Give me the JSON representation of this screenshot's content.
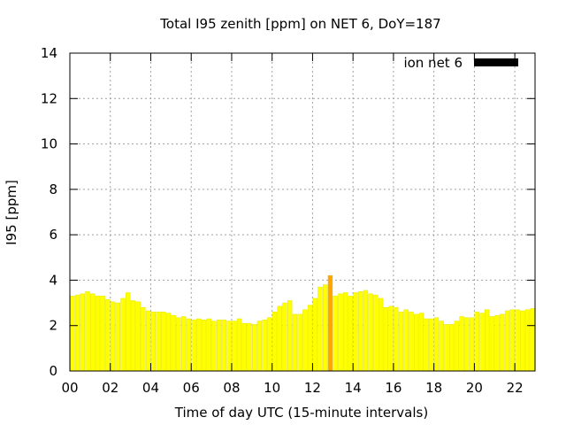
{
  "chart_data": {
    "type": "bar",
    "title": "Total I95 zenith [ppm] on NET 6, DoY=187",
    "xlabel": "Time of day UTC (15-minute intervals)",
    "ylabel": "I95 [ppm]",
    "xlim": [
      0,
      23
    ],
    "ylim": [
      0,
      14
    ],
    "x_tick_labels": [
      "00",
      "02",
      "04",
      "06",
      "08",
      "10",
      "12",
      "14",
      "16",
      "18",
      "20",
      "22"
    ],
    "y_tick_labels": [
      "0",
      "2",
      "4",
      "6",
      "8",
      "10",
      "12",
      "14"
    ],
    "grid": true,
    "legend": {
      "position": "top-right",
      "label": "ion net 6",
      "swatch_color": "#000000"
    },
    "bar_color": "#ffff00",
    "bar_edge_color": "#e6e600",
    "highlight_color": "#ffa500",
    "highlight_index": 51,
    "interval_hours": 0.25,
    "values": [
      3.3,
      3.35,
      3.4,
      3.5,
      3.4,
      3.3,
      3.3,
      3.15,
      3.05,
      3.0,
      3.2,
      3.45,
      3.1,
      3.05,
      2.8,
      2.65,
      2.6,
      2.6,
      2.6,
      2.55,
      2.45,
      2.35,
      2.4,
      2.3,
      2.25,
      2.3,
      2.25,
      2.3,
      2.2,
      2.25,
      2.25,
      2.2,
      2.2,
      2.3,
      2.1,
      2.1,
      2.05,
      2.2,
      2.25,
      2.35,
      2.6,
      2.85,
      3.0,
      3.1,
      2.5,
      2.5,
      2.7,
      2.9,
      3.2,
      3.7,
      3.8,
      4.2,
      3.3,
      3.4,
      3.45,
      3.3,
      3.45,
      3.5,
      3.55,
      3.4,
      3.35,
      3.2,
      2.8,
      2.85,
      2.8,
      2.6,
      2.7,
      2.6,
      2.5,
      2.55,
      2.3,
      2.3,
      2.35,
      2.2,
      2.05,
      2.05,
      2.2,
      2.4,
      2.35,
      2.35,
      2.6,
      2.55,
      2.7,
      2.4,
      2.45,
      2.5,
      2.65,
      2.7,
      2.7,
      2.65,
      2.7,
      2.75
    ]
  }
}
